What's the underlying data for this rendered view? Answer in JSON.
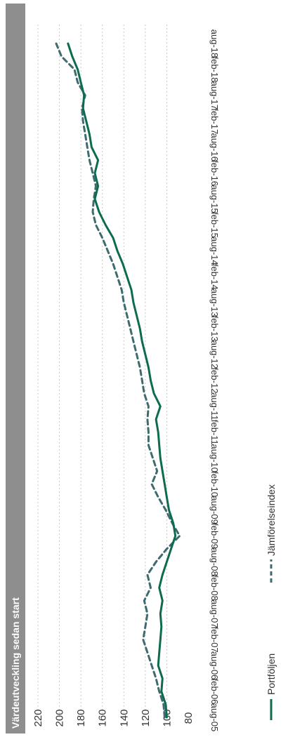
{
  "chart_data": {
    "type": "line",
    "title": "Värdeutveckling sedan start",
    "xlabel": "",
    "ylabel": "",
    "ylim": [
      80,
      220
    ],
    "yticks": [
      220,
      200,
      180,
      160,
      140,
      120,
      100,
      80
    ],
    "grid": true,
    "legend_position": "bottom-right",
    "x_tick_labels": [
      "aug-05",
      "feb-06",
      "aug-06",
      "feb-07",
      "aug-07",
      "feb-08",
      "aug-08",
      "feb-09",
      "aug-09",
      "feb-10",
      "aug-10",
      "feb-11",
      "aug-11",
      "feb-12",
      "aug-12",
      "feb-13",
      "aug-13",
      "feb-14",
      "aug-14",
      "feb-15",
      "aug-15",
      "feb-16",
      "aug-16",
      "feb-17",
      "aug-17",
      "feb-18",
      "aug-18"
    ],
    "series": [
      {
        "name": "Portföljen",
        "color": "#0d6b4f",
        "style": "solid",
        "x": [
          "aug-05",
          "nov-05",
          "feb-06",
          "may-06",
          "aug-06",
          "nov-06",
          "feb-07",
          "may-07",
          "aug-07",
          "nov-07",
          "feb-08",
          "may-08",
          "aug-08",
          "nov-08",
          "feb-09",
          "may-09",
          "aug-09",
          "nov-09",
          "feb-10",
          "may-10",
          "aug-10",
          "nov-10",
          "feb-11",
          "may-11",
          "aug-11",
          "nov-11",
          "feb-12",
          "may-12",
          "aug-12",
          "nov-12",
          "feb-13",
          "may-13",
          "aug-13",
          "nov-13",
          "feb-14",
          "may-14",
          "aug-14",
          "nov-14",
          "feb-15",
          "may-15",
          "aug-15",
          "nov-15",
          "feb-16",
          "may-16",
          "aug-16",
          "nov-16",
          "feb-17",
          "may-17",
          "aug-17",
          "nov-17",
          "feb-18",
          "may-18",
          "aug-18"
        ],
        "values": [
          100,
          101,
          105,
          104,
          108,
          107,
          106,
          105,
          106,
          104,
          107,
          104,
          100,
          96,
          92,
          94,
          98,
          100,
          102,
          104,
          106,
          107,
          108,
          110,
          106,
          112,
          115,
          117,
          120,
          123,
          125,
          128,
          131,
          133,
          137,
          141,
          146,
          150,
          157,
          163,
          167,
          164,
          167,
          164,
          170,
          172,
          175,
          178,
          177,
          180,
          183,
          188,
          192
        ]
      },
      {
        "name": "Jämförelseindex",
        "color": "#3e6b70",
        "style": "dashed",
        "x": [
          "aug-05",
          "nov-05",
          "feb-06",
          "may-06",
          "aug-06",
          "nov-06",
          "feb-07",
          "may-07",
          "aug-07",
          "nov-07",
          "feb-08",
          "may-08",
          "aug-08",
          "nov-08",
          "feb-09",
          "may-09",
          "aug-09",
          "nov-09",
          "feb-10",
          "may-10",
          "aug-10",
          "nov-10",
          "feb-11",
          "may-11",
          "aug-11",
          "nov-11",
          "feb-12",
          "may-12",
          "aug-12",
          "nov-12",
          "feb-13",
          "may-13",
          "aug-13",
          "nov-13",
          "feb-14",
          "may-14",
          "aug-14",
          "nov-14",
          "feb-15",
          "may-15",
          "aug-15",
          "nov-15",
          "feb-16",
          "may-16",
          "aug-16",
          "nov-16",
          "feb-17",
          "may-17",
          "aug-17",
          "nov-17",
          "feb-18",
          "may-18",
          "aug-18"
        ],
        "values": [
          102,
          103,
          107,
          110,
          114,
          118,
          122,
          120,
          118,
          121,
          115,
          118,
          110,
          100,
          88,
          95,
          101,
          108,
          114,
          109,
          113,
          117,
          117,
          118,
          117,
          121,
          123,
          125,
          128,
          131,
          134,
          137,
          140,
          142,
          146,
          150,
          155,
          160,
          166,
          169,
          168,
          166,
          169,
          172,
          174,
          176,
          178,
          179,
          176,
          183,
          186,
          198,
          203
        ]
      }
    ]
  }
}
